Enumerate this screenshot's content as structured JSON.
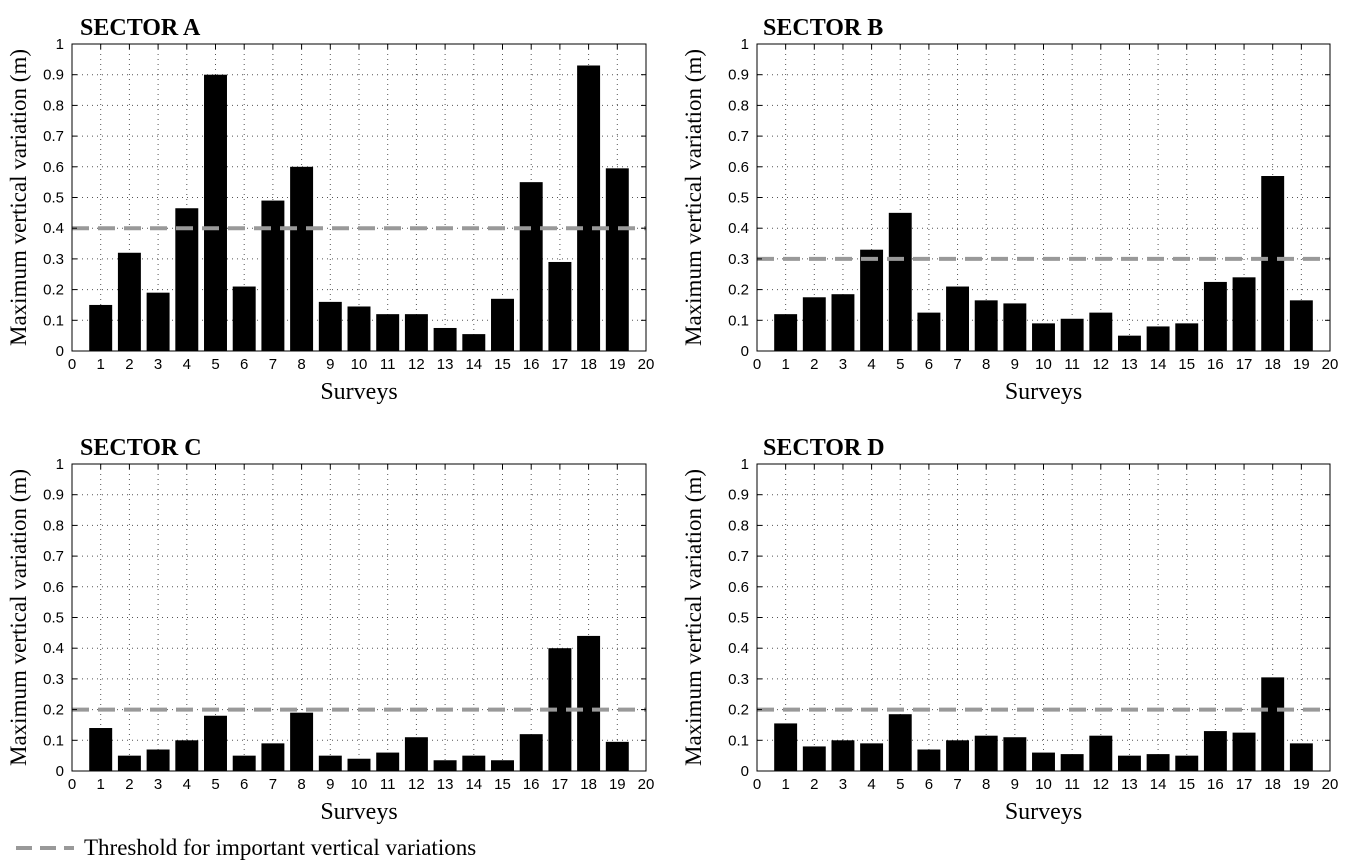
{
  "chart_data": [
    {
      "type": "bar",
      "title": "SECTOR A",
      "xlabel": "Surveys",
      "ylabel": "Maximum vertical variation (m)",
      "xlim": [
        0,
        20
      ],
      "ylim": [
        0,
        1
      ],
      "xticks": [
        "0",
        "1",
        "2",
        "3",
        "4",
        "5",
        "6",
        "7",
        "8",
        "9",
        "10",
        "11",
        "12",
        "13",
        "14",
        "15",
        "16",
        "17",
        "18",
        "19",
        "20"
      ],
      "yticks": [
        "0",
        "0.1",
        "0.2",
        "0.3",
        "0.4",
        "0.5",
        "0.6",
        "0.7",
        "0.8",
        "0.9",
        "1"
      ],
      "categories": [
        1,
        2,
        3,
        4,
        5,
        6,
        7,
        8,
        9,
        10,
        11,
        12,
        13,
        14,
        15,
        16,
        17,
        18,
        19
      ],
      "values": [
        0.15,
        0.32,
        0.19,
        0.465,
        0.9,
        0.21,
        0.49,
        0.6,
        0.16,
        0.145,
        0.12,
        0.12,
        0.075,
        0.055,
        0.17,
        0.55,
        0.29,
        0.93,
        0.595
      ],
      "threshold": 0.4,
      "grid": true,
      "bar_color": "#000000",
      "threshold_color": "#999999"
    },
    {
      "type": "bar",
      "title": "SECTOR B",
      "xlabel": "Surveys",
      "ylabel": "Maximum vertical variation (m)",
      "xlim": [
        0,
        20
      ],
      "ylim": [
        0,
        1
      ],
      "xticks": [
        "0",
        "1",
        "2",
        "3",
        "4",
        "5",
        "6",
        "7",
        "8",
        "9",
        "10",
        "11",
        "12",
        "13",
        "14",
        "15",
        "16",
        "17",
        "18",
        "19",
        "20"
      ],
      "yticks": [
        "0",
        "0.1",
        "0.2",
        "0.3",
        "0.4",
        "0.5",
        "0.6",
        "0.7",
        "0.8",
        "0.9",
        "1"
      ],
      "categories": [
        1,
        2,
        3,
        4,
        5,
        6,
        7,
        8,
        9,
        10,
        11,
        12,
        13,
        14,
        15,
        16,
        17,
        18,
        19
      ],
      "values": [
        0.12,
        0.175,
        0.185,
        0.33,
        0.45,
        0.125,
        0.21,
        0.165,
        0.155,
        0.09,
        0.105,
        0.125,
        0.05,
        0.08,
        0.09,
        0.225,
        0.24,
        0.57,
        0.165
      ],
      "threshold": 0.3,
      "grid": true,
      "bar_color": "#000000",
      "threshold_color": "#999999"
    },
    {
      "type": "bar",
      "title": "SECTOR C",
      "xlabel": "Surveys",
      "ylabel": "Maximum vertical variation (m)",
      "xlim": [
        0,
        20
      ],
      "ylim": [
        0,
        1
      ],
      "xticks": [
        "0",
        "1",
        "2",
        "3",
        "4",
        "5",
        "6",
        "7",
        "8",
        "9",
        "10",
        "11",
        "12",
        "13",
        "14",
        "15",
        "16",
        "17",
        "18",
        "19",
        "20"
      ],
      "yticks": [
        "0",
        "0.1",
        "0.2",
        "0.3",
        "0.4",
        "0.5",
        "0.6",
        "0.7",
        "0.8",
        "0.9",
        "1"
      ],
      "categories": [
        1,
        2,
        3,
        4,
        5,
        6,
        7,
        8,
        9,
        10,
        11,
        12,
        13,
        14,
        15,
        16,
        17,
        18,
        19
      ],
      "values": [
        0.14,
        0.05,
        0.07,
        0.1,
        0.18,
        0.05,
        0.09,
        0.19,
        0.05,
        0.04,
        0.06,
        0.11,
        0.035,
        0.05,
        0.035,
        0.12,
        0.4,
        0.44,
        0.095
      ],
      "threshold": 0.2,
      "grid": true,
      "bar_color": "#000000",
      "threshold_color": "#999999"
    },
    {
      "type": "bar",
      "title": "SECTOR D",
      "xlabel": "Surveys",
      "ylabel": "Maximum vertical variation (m)",
      "xlim": [
        0,
        20
      ],
      "ylim": [
        0,
        1
      ],
      "xticks": [
        "0",
        "1",
        "2",
        "3",
        "4",
        "5",
        "6",
        "7",
        "8",
        "9",
        "10",
        "11",
        "12",
        "13",
        "14",
        "15",
        "16",
        "17",
        "18",
        "19",
        "20"
      ],
      "yticks": [
        "0",
        "0.1",
        "0.2",
        "0.3",
        "0.4",
        "0.5",
        "0.6",
        "0.7",
        "0.8",
        "0.9",
        "1"
      ],
      "categories": [
        1,
        2,
        3,
        4,
        5,
        6,
        7,
        8,
        9,
        10,
        11,
        12,
        13,
        14,
        15,
        16,
        17,
        18,
        19
      ],
      "values": [
        0.155,
        0.08,
        0.1,
        0.09,
        0.185,
        0.07,
        0.1,
        0.115,
        0.11,
        0.06,
        0.055,
        0.115,
        0.05,
        0.055,
        0.05,
        0.13,
        0.125,
        0.305,
        0.09
      ],
      "threshold": 0.2,
      "grid": true,
      "bar_color": "#000000",
      "threshold_color": "#999999"
    }
  ],
  "legend": {
    "label": "Threshold for important vertical variations",
    "color": "#999999"
  }
}
